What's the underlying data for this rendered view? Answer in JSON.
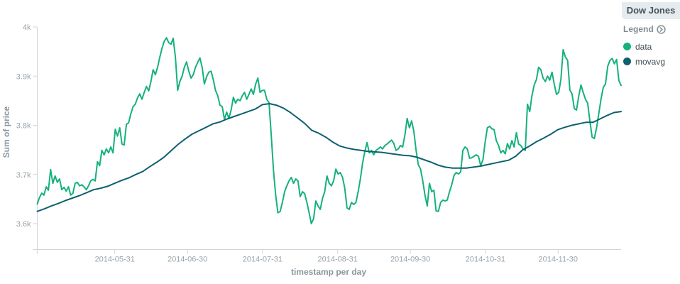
{
  "panel": {
    "title": "Dow Jones"
  },
  "legend": {
    "header": "Legend",
    "items": [
      {
        "label": "data",
        "color": "#16b17c"
      },
      {
        "label": "movavg",
        "color": "#0d6170"
      }
    ]
  },
  "colors": {
    "background": "#ffffff",
    "axis_line": "#cfd6da",
    "tick_label": "#9aa4ab",
    "axis_title": "#8a969d",
    "legend_header": "#7f8c93",
    "legend_text": "#404e56",
    "title_bg": "#e5ebee",
    "title_text": "#46535b",
    "series_data": "#16b17c",
    "series_movavg": "#0d6170"
  },
  "chart_data": {
    "type": "line",
    "title": "Dow Jones",
    "xlabel": "timestamp per day",
    "ylabel": "Sum of price",
    "grid": false,
    "legend_position": "right",
    "x_start_date": "2014-04-29",
    "x_end_date": "2014-12-26",
    "total_days": 241,
    "ylim": [
      3547,
      4000
    ],
    "y_ticks": [
      {
        "label": "4k",
        "value": 4000
      },
      {
        "label": "3.9k",
        "value": 3900
      },
      {
        "label": "3.8k",
        "value": 3800
      },
      {
        "label": "3.7k",
        "value": 3700
      },
      {
        "label": "3.6k",
        "value": 3600
      }
    ],
    "x_ticks": [
      {
        "label": "2014-05-31",
        "day": 32
      },
      {
        "label": "2014-06-30",
        "day": 62
      },
      {
        "label": "2014-07-31",
        "day": 93
      },
      {
        "label": "2014-08-31",
        "day": 124
      },
      {
        "label": "2014-09-30",
        "day": 154
      },
      {
        "label": "2014-10-31",
        "day": 185
      },
      {
        "label": "2014-11-30",
        "day": 215
      }
    ],
    "series": [
      {
        "name": "data",
        "color": "#16b17c",
        "values": [
          3640,
          3653,
          3662,
          3658,
          3675,
          3668,
          3710,
          3682,
          3697,
          3684,
          3691,
          3669,
          3674,
          3666,
          3675,
          3658,
          3662,
          3682,
          3684,
          3677,
          3679,
          3675,
          3669,
          3677,
          3687,
          3690,
          3687,
          3726,
          3718,
          3749,
          3740,
          3752,
          3744,
          3756,
          3744,
          3792,
          3778,
          3795,
          3762,
          3760,
          3802,
          3805,
          3824,
          3838,
          3843,
          3856,
          3864,
          3853,
          3867,
          3879,
          3870,
          3889,
          3913,
          3903,
          3918,
          3939,
          3957,
          3971,
          3978,
          3968,
          3965,
          3977,
          3939,
          3871,
          3889,
          3900,
          3918,
          3929,
          3910,
          3896,
          3903,
          3918,
          3928,
          3937,
          3918,
          3884,
          3899,
          3908,
          3910,
          3893,
          3871,
          3860,
          3841,
          3838,
          3812,
          3827,
          3814,
          3831,
          3857,
          3845,
          3853,
          3850,
          3860,
          3867,
          3853,
          3863,
          3874,
          3863,
          3884,
          3896,
          3867,
          3871,
          3871,
          3853,
          3846,
          3781,
          3708,
          3658,
          3622,
          3625,
          3643,
          3665,
          3677,
          3687,
          3694,
          3682,
          3691,
          3687,
          3655,
          3665,
          3661,
          3643,
          3622,
          3600,
          3610,
          3646,
          3636,
          3629,
          3651,
          3665,
          3697,
          3682,
          3677,
          3687,
          3711,
          3701,
          3704,
          3694,
          3672,
          3632,
          3629,
          3643,
          3639,
          3643,
          3665,
          3691,
          3723,
          3747,
          3765,
          3744,
          3749,
          3740,
          3749,
          3752,
          3756,
          3752,
          3759,
          3762,
          3766,
          3770,
          3763,
          3749,
          3752,
          3759,
          3756,
          3781,
          3814,
          3795,
          3809,
          3788,
          3749,
          3720,
          3711,
          3687,
          3658,
          3636,
          3682,
          3665,
          3668,
          3626,
          3625,
          3643,
          3648,
          3646,
          3648,
          3665,
          3679,
          3698,
          3704,
          3701,
          3705,
          3749,
          3756,
          3752,
          3733,
          3734,
          3737,
          3740,
          3737,
          3718,
          3730,
          3766,
          3795,
          3798,
          3793,
          3791,
          3769,
          3759,
          3744,
          3749,
          3742,
          3763,
          3752,
          3769,
          3756,
          3785,
          3762,
          3759,
          3752,
          3749,
          3843,
          3828,
          3860,
          3882,
          3893,
          3918,
          3913,
          3896,
          3889,
          3900,
          3892,
          3908,
          3884,
          3863,
          3867,
          3893,
          3954,
          3939,
          3932,
          3872,
          3864,
          3834,
          3831,
          3860,
          3882,
          3867,
          3853,
          3845,
          3809,
          3776,
          3773,
          3795,
          3824,
          3853,
          3877,
          3884,
          3920,
          3932,
          3936,
          3925,
          3934,
          3891,
          3881
        ]
      },
      {
        "name": "movavg",
        "color": "#0d6170",
        "values": [
          3625,
          3630,
          3636,
          3641,
          3647,
          3652,
          3657,
          3663,
          3669,
          3672,
          3676,
          3682,
          3688,
          3693,
          3700,
          3706,
          3716,
          3725,
          3735,
          3748,
          3761,
          3772,
          3782,
          3789,
          3796,
          3803,
          3807,
          3813,
          3818,
          3823,
          3828,
          3833,
          3842,
          3844,
          3841,
          3835,
          3826,
          3815,
          3804,
          3790,
          3784,
          3776,
          3766,
          3758,
          3754,
          3751,
          3749,
          3747,
          3746,
          3745,
          3743,
          3741,
          3739,
          3738,
          3735,
          3730,
          3725,
          3719,
          3715,
          3713,
          3713,
          3713,
          3715,
          3717,
          3720,
          3723,
          3726,
          3729,
          3737,
          3750,
          3758,
          3767,
          3774,
          3782,
          3791,
          3796,
          3800,
          3803,
          3806,
          3806,
          3813,
          3820,
          3826,
          3828
        ]
      }
    ]
  }
}
